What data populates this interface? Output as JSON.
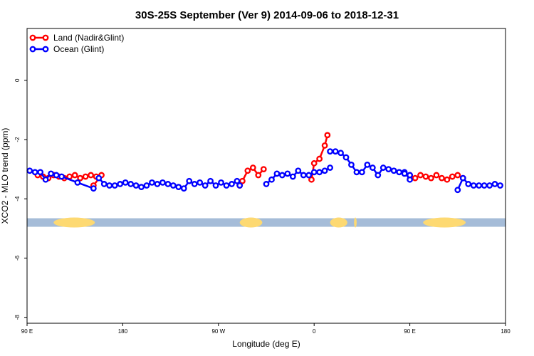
{
  "chart_data": {
    "type": "line",
    "title": "30S-25S September (Ver 9)   2014-09-06 to 2018-12-31",
    "xlabel": "Longitude (deg E)",
    "ylabel": "XCO2 - MLO trend (ppm)",
    "xlim": [
      90,
      450
    ],
    "ylim": [
      -8.2,
      1.75
    ],
    "x_ticks": [
      {
        "value": 90,
        "label": "90 E"
      },
      {
        "value": 162,
        "label": "180"
      },
      {
        "value": 234,
        "label": "90 W"
      },
      {
        "value": 306,
        "label": "0"
      },
      {
        "value": 378,
        "label": "90 E"
      },
      {
        "value": 450,
        "label": "180"
      }
    ],
    "y_ticks": [
      {
        "value": 0,
        "label": "0"
      },
      {
        "value": -2,
        "label": "-2"
      },
      {
        "value": -4,
        "label": "-4"
      },
      {
        "value": -6,
        "label": "-6"
      },
      {
        "value": -8,
        "label": "-8"
      }
    ],
    "legend_position": "top-left",
    "series": [
      {
        "name": "Land (Nadir&Glint)",
        "color": "#ff0000",
        "segments": [
          {
            "x": [
              98,
              102,
              106,
              110,
              114,
              118,
              122,
              126,
              130,
              134,
              138,
              142,
              146,
              140
            ],
            "y": [
              -3.2,
              -3.25,
              -3.3,
              -3.2,
              -3.25,
              -3.3,
              -3.25,
              -3.2,
              -3.3,
              -3.25,
              -3.2,
              -3.25,
              -3.2,
              -3.55
            ]
          },
          {
            "x": [
              250,
              252,
              256,
              260,
              264,
              268
            ],
            "y": [
              -3.55,
              -3.4,
              -3.05,
              -2.95,
              -3.2,
              -3.0
            ]
          },
          {
            "x": [
              304,
              306,
              310,
              314,
              316
            ],
            "y": [
              -3.35,
              -2.8,
              -2.65,
              -2.2,
              -1.85
            ]
          },
          {
            "x": [
              378,
              382,
              386,
              390,
              394,
              398,
              402,
              406,
              410,
              414,
              418
            ],
            "y": [
              -3.2,
              -3.3,
              -3.2,
              -3.25,
              -3.3,
              -3.2,
              -3.3,
              -3.35,
              -3.25,
              -3.2,
              -3.3
            ]
          }
        ]
      },
      {
        "name": "Ocean (Glint)",
        "color": "#0000ff",
        "segments": [
          {
            "x": [
              92,
              96,
              100,
              104,
              108
            ],
            "y": [
              -3.05,
              -3.1,
              -3.1,
              -3.35,
              -3.15
            ]
          },
          {
            "x": [
              112,
              116,
              128,
              140
            ],
            "y": [
              -3.2,
              -3.25,
              -3.45,
              -3.65
            ]
          },
          {
            "x": [
              144,
              148,
              152,
              156,
              160,
              164,
              168,
              172,
              176,
              180,
              184,
              188,
              192,
              196,
              200,
              204,
              208,
              212,
              216,
              220,
              224,
              228,
              232,
              236,
              240,
              244,
              248,
              250
            ],
            "y": [
              -3.3,
              -3.5,
              -3.55,
              -3.55,
              -3.5,
              -3.45,
              -3.5,
              -3.55,
              -3.6,
              -3.55,
              -3.45,
              -3.5,
              -3.45,
              -3.5,
              -3.55,
              -3.6,
              -3.65,
              -3.4,
              -3.5,
              -3.45,
              -3.55,
              -3.4,
              -3.55,
              -3.45,
              -3.55,
              -3.5,
              -3.4,
              -3.55
            ]
          },
          {
            "x": [
              270,
              274,
              278,
              282,
              286,
              290,
              294,
              298,
              302,
              306,
              310,
              314,
              318
            ],
            "y": [
              -3.5,
              -3.35,
              -3.15,
              -3.2,
              -3.15,
              -3.25,
              -3.05,
              -3.2,
              -3.2,
              -3.1,
              -3.1,
              -3.05,
              -2.95
            ]
          },
          {
            "x": [
              318,
              322,
              326,
              330,
              334,
              338,
              342,
              346,
              350,
              354,
              358,
              362,
              366,
              370,
              374,
              378
            ],
            "y": [
              -2.4,
              -2.4,
              -2.45,
              -2.6,
              -2.85,
              -3.1,
              -3.1,
              -2.85,
              -2.95,
              -3.2,
              -2.95,
              -3.0,
              -3.05,
              -3.1,
              -3.1,
              -3.35
            ]
          },
          {
            "x": [
              374,
              378
            ],
            "y": [
              -3.15,
              -3.2
            ]
          },
          {
            "x": [
              414,
              418,
              422,
              426,
              430,
              434,
              438,
              442,
              446
            ],
            "y": [
              -3.7,
              -3.3,
              -3.5,
              -3.55,
              -3.55,
              -3.55,
              -3.55,
              -3.5,
              -3.55
            ]
          }
        ]
      }
    ],
    "land_ocean_strip": {
      "y": -4.8,
      "ocean_color": "#a5bcd8",
      "land_color": "#fdd972",
      "land_ranges": [
        [
          110,
          141
        ],
        [
          250,
          267
        ],
        [
          318,
          331
        ],
        [
          336,
          338
        ],
        [
          388,
          420
        ]
      ]
    }
  }
}
